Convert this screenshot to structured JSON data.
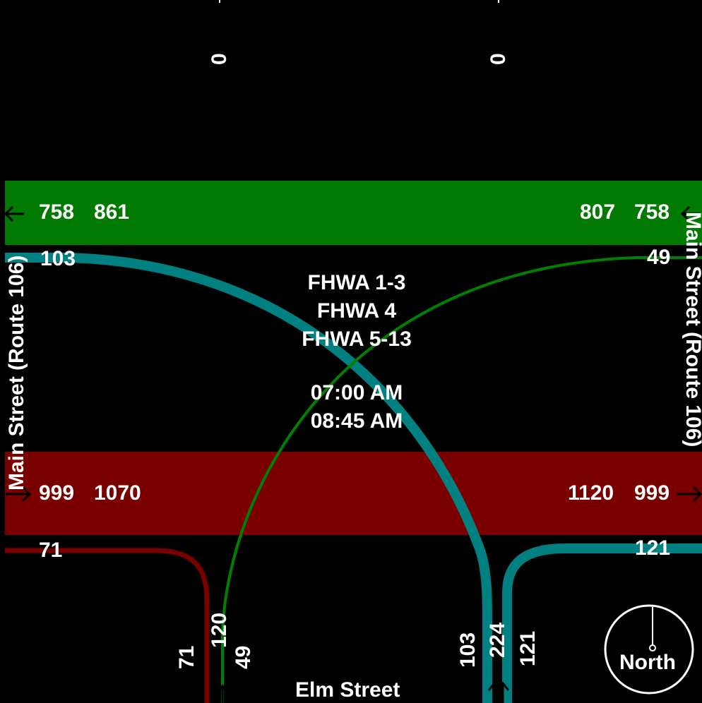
{
  "colors": {
    "eastbound_band": "#007a00",
    "westbound_band": "#7a0000",
    "teal_flow": "#008080",
    "green_flow": "#008000",
    "red_flow": "#7a0000"
  },
  "top_counts": {
    "left": "0",
    "right": "0"
  },
  "green_band": {
    "left_a": "758",
    "left_b": "861",
    "right_a": "807",
    "right_b": "758"
  },
  "red_band": {
    "left_a": "999",
    "left_b": "1070",
    "right_a": "1120",
    "right_b": "999"
  },
  "turn_counts": {
    "left_upper": "103",
    "right_upper": "49",
    "left_lower": "71",
    "right_lower": "121"
  },
  "approach_counts": {
    "a": "71",
    "b": "120",
    "c": "49",
    "d": "103",
    "e": "224",
    "f": "121"
  },
  "center_text": {
    "line1": "FHWA 1-3",
    "line2": "FHWA 4",
    "line3": "FHWA 5-13",
    "time_start": "07:00 AM",
    "time_end": "08:45 AM"
  },
  "streets": {
    "left": "Main Street (Route 106)",
    "right": "Main Street (Route 106)",
    "bottom": "Elm Street"
  },
  "compass_label": "North"
}
